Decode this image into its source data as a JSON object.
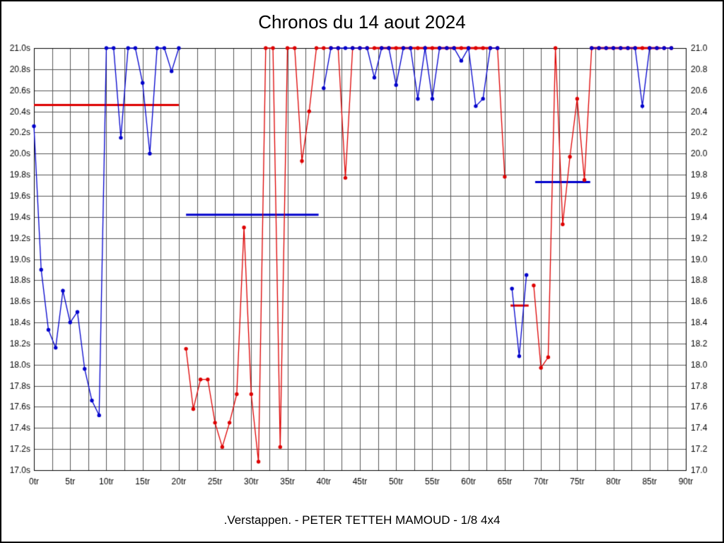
{
  "page": {
    "title": "Chronos du 14 aout 2024",
    "caption": ".Verstappen. - PETER TETTEH MAMOUD - 1/8 4x4"
  },
  "chart_data": {
    "type": "line",
    "title": "Chronos du 14 aout 2024",
    "subtitle": ".Verstappen. - PETER TETTEH MAMOUD - 1/8 4x4",
    "xlabel": "",
    "ylabel": "",
    "xlim": [
      0,
      90
    ],
    "ylim": [
      17.0,
      21.0
    ],
    "x_minor_step": 2.5,
    "grid_color": "#555555",
    "grid_on": true,
    "legend_position": "none",
    "x_tick_labels": [
      "0tr",
      "5tr",
      "10tr",
      "15tr",
      "20tr",
      "25tr",
      "30tr",
      "35tr",
      "40tr",
      "45tr",
      "50tr",
      "55tr",
      "60tr",
      "65tr",
      "70tr",
      "75tr",
      "80tr",
      "85tr",
      "90tr"
    ],
    "y_tick_labels_left": [
      "21.0s",
      "20.8s",
      "20.6s",
      "20.4s",
      "20.2s",
      "20.0s",
      "19.8s",
      "19.6s",
      "19.4s",
      "19.2s",
      "19.0s",
      "18.8s",
      "18.6s",
      "18.4s",
      "18.2s",
      "18.0s",
      "17.8s",
      "17.6s",
      "17.4s",
      "17.2s",
      "17.0s"
    ],
    "y_tick_labels_right": [
      "21.0",
      "20.8",
      "20.6",
      "20.4",
      "20.2",
      "20.0",
      "19.8",
      "19.6",
      "19.4",
      "19.2",
      "19.0",
      "18.8",
      "18.6",
      "18.4",
      "18.2",
      "18.0",
      "17.8",
      "17.6",
      "17.4",
      "17.2",
      "17.0"
    ],
    "series": [
      {
        "name": "red",
        "color": "#dd0000",
        "segments": [
          [
            [
              21,
              18.15
            ],
            [
              22,
              17.58
            ],
            [
              23,
              17.86
            ],
            [
              24,
              17.86
            ],
            [
              25,
              17.45
            ],
            [
              26,
              17.22
            ],
            [
              27,
              17.45
            ],
            [
              28,
              17.72
            ],
            [
              29,
              19.3
            ],
            [
              30,
              17.72
            ],
            [
              31,
              17.08
            ],
            [
              32,
              21.0
            ],
            [
              33,
              21.0
            ],
            [
              34,
              17.22
            ],
            [
              35,
              21.0
            ],
            [
              36,
              21.0
            ],
            [
              37,
              19.93
            ],
            [
              38,
              20.4
            ],
            [
              39,
              21.0
            ],
            [
              40,
              21.0
            ],
            [
              41,
              21.0
            ],
            [
              42,
              21.0
            ],
            [
              43,
              19.77
            ],
            [
              44,
              21.0
            ],
            [
              45,
              21.0
            ],
            [
              46,
              21.0
            ],
            [
              47,
              21.0
            ],
            [
              48,
              21.0
            ],
            [
              49,
              21.0
            ],
            [
              50,
              21.0
            ],
            [
              51,
              21.0
            ],
            [
              52,
              21.0
            ],
            [
              53,
              21.0
            ],
            [
              54,
              21.0
            ],
            [
              55,
              21.0
            ],
            [
              56,
              21.0
            ],
            [
              57,
              21.0
            ],
            [
              58,
              21.0
            ],
            [
              59,
              21.0
            ],
            [
              60,
              21.0
            ],
            [
              61,
              21.0
            ],
            [
              62,
              21.0
            ],
            [
              63,
              21.0
            ],
            [
              64,
              21.0
            ],
            [
              65,
              19.78
            ]
          ],
          [
            [
              69,
              18.75
            ],
            [
              70,
              17.97
            ],
            [
              71,
              18.07
            ],
            [
              72,
              21.0
            ],
            [
              73,
              19.33
            ],
            [
              74,
              19.97
            ],
            [
              75,
              20.52
            ],
            [
              76,
              19.75
            ],
            [
              77,
              21.0
            ],
            [
              78,
              21.0
            ],
            [
              79,
              21.0
            ],
            [
              80,
              21.0
            ],
            [
              81,
              21.0
            ],
            [
              82,
              21.0
            ],
            [
              83,
              21.0
            ],
            [
              84,
              21.0
            ],
            [
              85,
              21.0
            ],
            [
              86,
              21.0
            ],
            [
              87,
              21.0
            ],
            [
              88,
              21.0
            ]
          ]
        ]
      },
      {
        "name": "blue",
        "color": "#0000cc",
        "segments": [
          [
            [
              0,
              20.26
            ],
            [
              1,
              18.9
            ],
            [
              2,
              18.33
            ],
            [
              3,
              18.16
            ],
            [
              4,
              18.7
            ],
            [
              5,
              18.4
            ],
            [
              6,
              18.5
            ],
            [
              7,
              17.96
            ],
            [
              8,
              17.66
            ],
            [
              9,
              17.52
            ],
            [
              10,
              21.0
            ],
            [
              11,
              21.0
            ],
            [
              12,
              20.15
            ],
            [
              13,
              21.0
            ],
            [
              14,
              21.0
            ],
            [
              15,
              20.67
            ],
            [
              16,
              20.0
            ],
            [
              17,
              21.0
            ],
            [
              18,
              21.0
            ],
            [
              19,
              20.78
            ],
            [
              20,
              21.0
            ]
          ],
          [
            [
              40,
              20.62
            ],
            [
              41,
              21.0
            ],
            [
              42,
              21.0
            ],
            [
              43,
              21.0
            ],
            [
              44,
              21.0
            ],
            [
              45,
              21.0
            ],
            [
              46,
              21.0
            ],
            [
              47,
              20.72
            ],
            [
              48,
              21.0
            ],
            [
              49,
              21.0
            ],
            [
              50,
              20.65
            ],
            [
              51,
              21.0
            ],
            [
              52,
              21.0
            ],
            [
              53,
              20.52
            ],
            [
              54,
              21.0
            ],
            [
              55,
              20.52
            ],
            [
              56,
              21.0
            ],
            [
              57,
              21.0
            ],
            [
              58,
              21.0
            ],
            [
              59,
              20.88
            ],
            [
              60,
              21.0
            ],
            [
              61,
              20.45
            ],
            [
              62,
              20.52
            ],
            [
              63,
              21.0
            ],
            [
              64,
              21.0
            ]
          ],
          [
            [
              66,
              18.72
            ],
            [
              67,
              18.08
            ],
            [
              68,
              18.85
            ]
          ],
          [
            [
              77,
              21.0
            ],
            [
              78,
              21.0
            ],
            [
              79,
              21.0
            ],
            [
              80,
              21.0
            ],
            [
              81,
              21.0
            ],
            [
              82,
              21.0
            ],
            [
              83,
              21.0
            ],
            [
              84,
              20.45
            ],
            [
              85,
              21.0
            ],
            [
              86,
              21.0
            ],
            [
              87,
              21.0
            ],
            [
              88,
              21.0
            ]
          ]
        ]
      }
    ],
    "average_segments": [
      {
        "color": "#dd0000",
        "y": 20.46,
        "x1": 0,
        "x2": 20
      },
      {
        "color": "#0000cc",
        "y": 19.42,
        "x1": 21,
        "x2": 39.3
      },
      {
        "color": "#dd0000",
        "y": 21.0,
        "x1": 47,
        "x2": 63
      },
      {
        "color": "#dd0000",
        "y": 18.56,
        "x1": 65.8,
        "x2": 68.3
      },
      {
        "color": "#0000cc",
        "y": 19.73,
        "x1": 69.2,
        "x2": 76.8
      },
      {
        "color": "#dd0000",
        "y": 21.0,
        "x1": 77,
        "x2": 86.5
      }
    ]
  }
}
